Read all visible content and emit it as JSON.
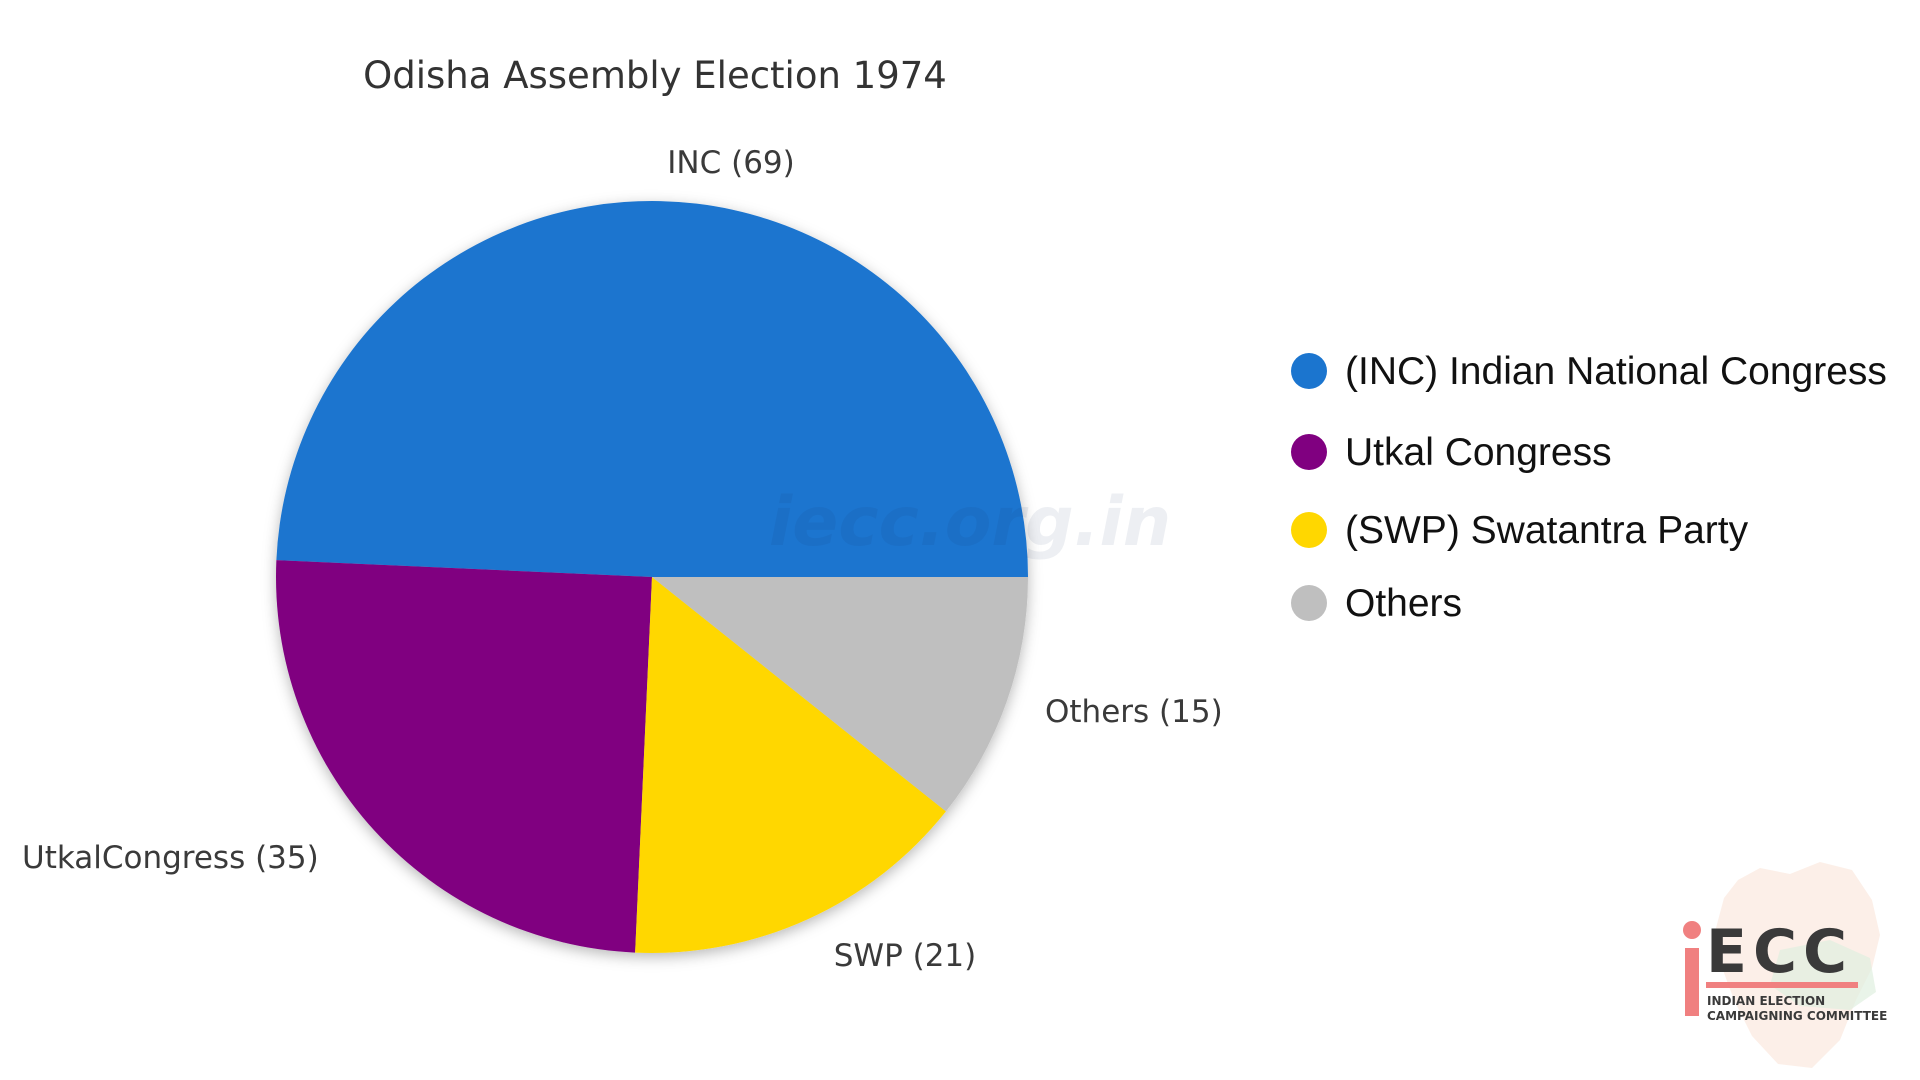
{
  "chart_data": {
    "type": "pie",
    "title": "Odisha Assembly Election 1974",
    "slices": [
      {
        "label": "INC (69)",
        "value": 69,
        "color": "#1b75cf"
      },
      {
        "label": "UtkalCongress (35)",
        "value": 35,
        "color": "#800080"
      },
      {
        "label": "SWP (21)",
        "value": 21,
        "color": "#ffd700"
      },
      {
        "label": "Others (15)",
        "value": 15,
        "color": "#bfbfbf"
      }
    ],
    "legend": {
      "placement": "right",
      "entries": [
        {
          "label": "(INC) Indian National Congress",
          "color": "#1b75cf"
        },
        {
          "label": "Utkal Congress",
          "color": "#800080"
        },
        {
          "label": "(SWP) Swatantra Party",
          "color": "#ffd700"
        },
        {
          "label": "Others",
          "color": "#bfbfbf"
        }
      ]
    }
  },
  "watermark": "iecc.org.in",
  "logo": {
    "mark": "ECC",
    "line1": "INDIAN ELECTION",
    "line2": "CAMPAIGNING COMMITTEE",
    "accent": "#f08080"
  }
}
